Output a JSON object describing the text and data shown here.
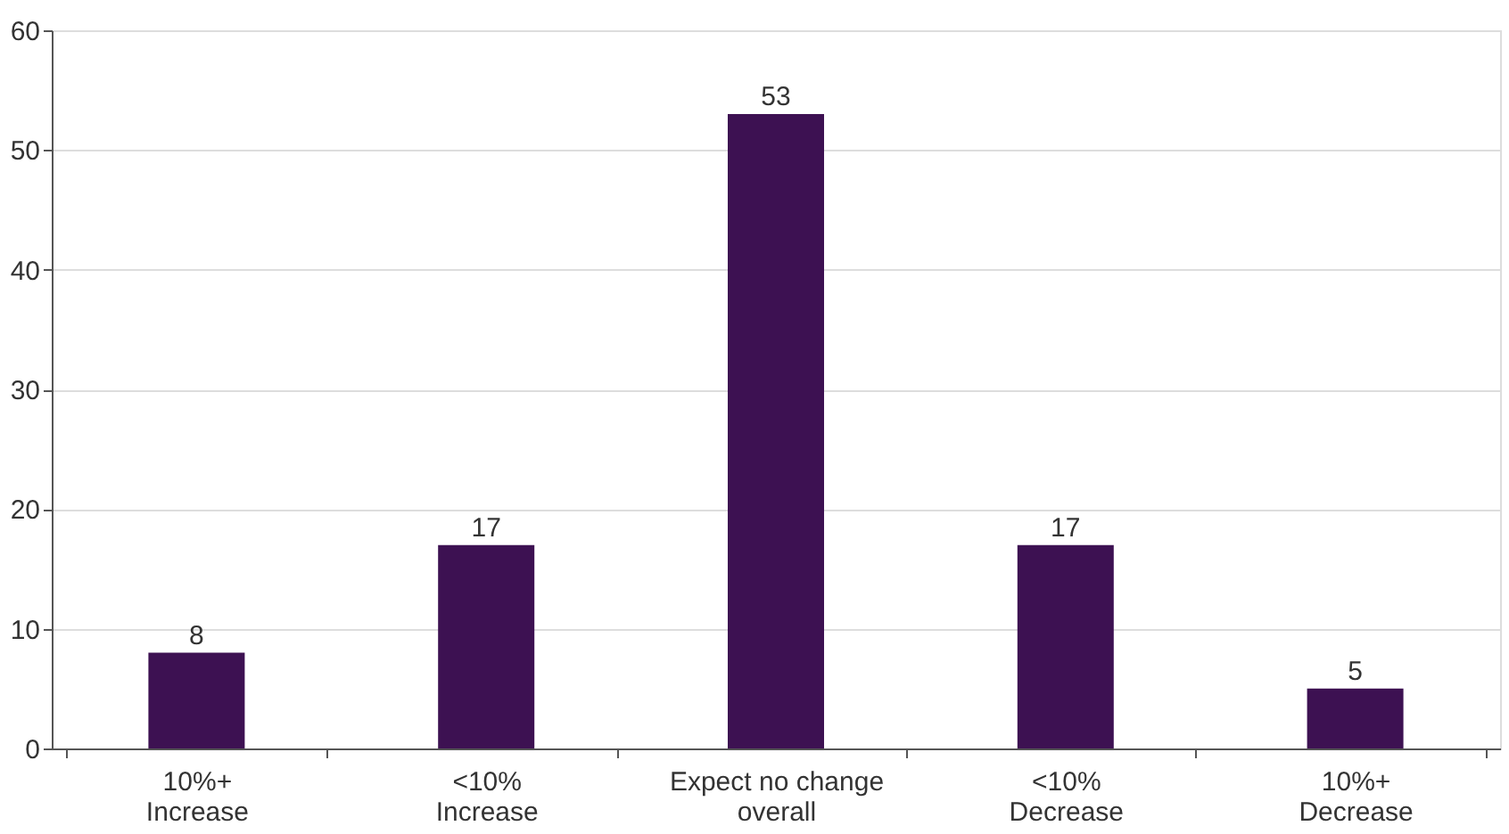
{
  "chart_data": {
    "type": "bar",
    "categories": [
      "10%+\nIncrease",
      "<10%\nIncrease",
      "Expect no change\noverall",
      "<10%\nDecrease",
      "10%+\nDecrease"
    ],
    "values": [
      8,
      17,
      53,
      17,
      5
    ],
    "color": "#3d1152",
    "ylim": [
      0,
      60
    ],
    "yticks": [
      0,
      10,
      20,
      30,
      40,
      50,
      60
    ],
    "grid": "y",
    "data_labels": true
  }
}
